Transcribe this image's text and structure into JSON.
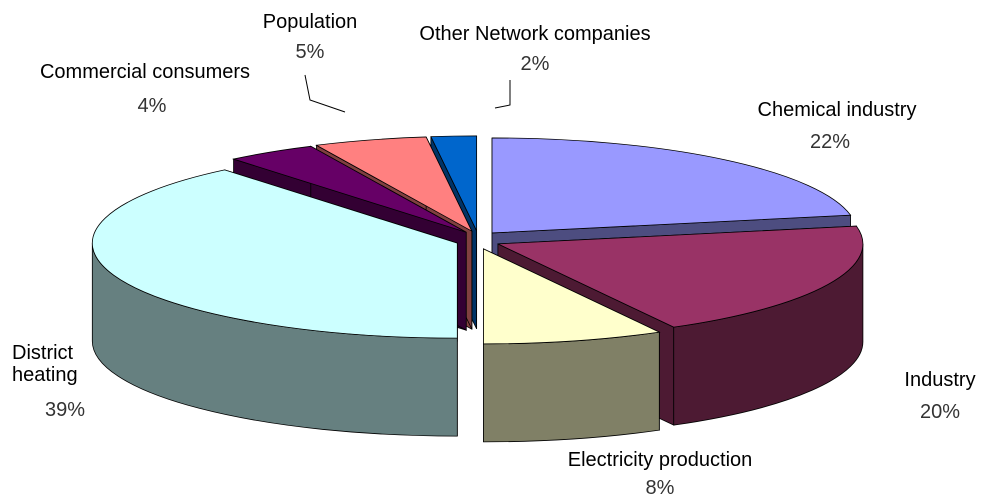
{
  "chart_data": {
    "type": "pie",
    "categories": [
      "Chemical industry",
      "Industry",
      "Electricity production",
      "District heating",
      "Commercial consumers",
      "Population",
      "Other Network companies"
    ],
    "values": [
      22,
      20,
      8,
      39,
      4,
      5,
      2
    ],
    "value_labels": [
      "22%",
      "20%",
      "8%",
      "39%",
      "4%",
      "5%",
      "2%"
    ],
    "colors": [
      "#9999ff",
      "#993366",
      "#ffffcc",
      "#ccffff",
      "#660066",
      "#ff8080",
      "#0066cc"
    ],
    "start_angle": 0,
    "direction": "clockwise",
    "exploded": true,
    "three_d": true
  }
}
